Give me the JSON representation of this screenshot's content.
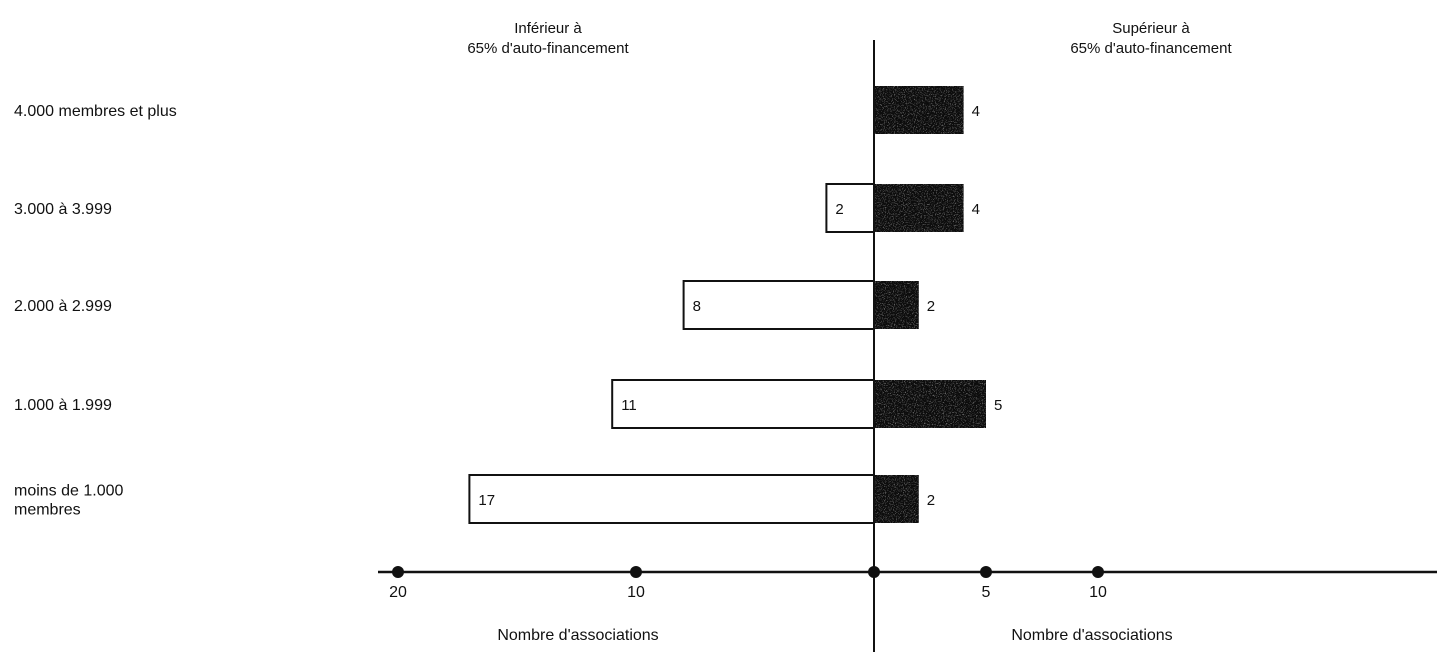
{
  "chart_data": {
    "type": "bar",
    "orientation": "horizontal-diverging",
    "left_header": [
      "Inférieur à",
      "65% d'auto-financement"
    ],
    "right_header": [
      "Supérieur à",
      "65% d'auto-financement"
    ],
    "categories": [
      [
        "4.000 membres et plus"
      ],
      [
        "3.000 à 3.999"
      ],
      [
        "2.000 à 2.999"
      ],
      [
        "1.000 à 1.999"
      ],
      [
        "moins de 1.000",
        "membres"
      ]
    ],
    "series": [
      {
        "side": "left",
        "values": [
          0,
          2,
          8,
          11,
          17
        ],
        "value_labels": [
          "",
          "2",
          "8",
          "11",
          "17"
        ],
        "color": "#ffffff"
      },
      {
        "side": "right",
        "values": [
          4,
          4,
          2,
          5,
          2
        ],
        "value_labels": [
          "4",
          "4",
          "2",
          "5",
          "2"
        ],
        "color": "#111111"
      }
    ],
    "left_axis": {
      "max": 20,
      "ticks": [
        20,
        10
      ],
      "title": "Nombre d'associations"
    },
    "right_axis": {
      "max": 10,
      "ticks": [
        5,
        10
      ],
      "title": "Nombre d'associations"
    },
    "grid": false
  }
}
